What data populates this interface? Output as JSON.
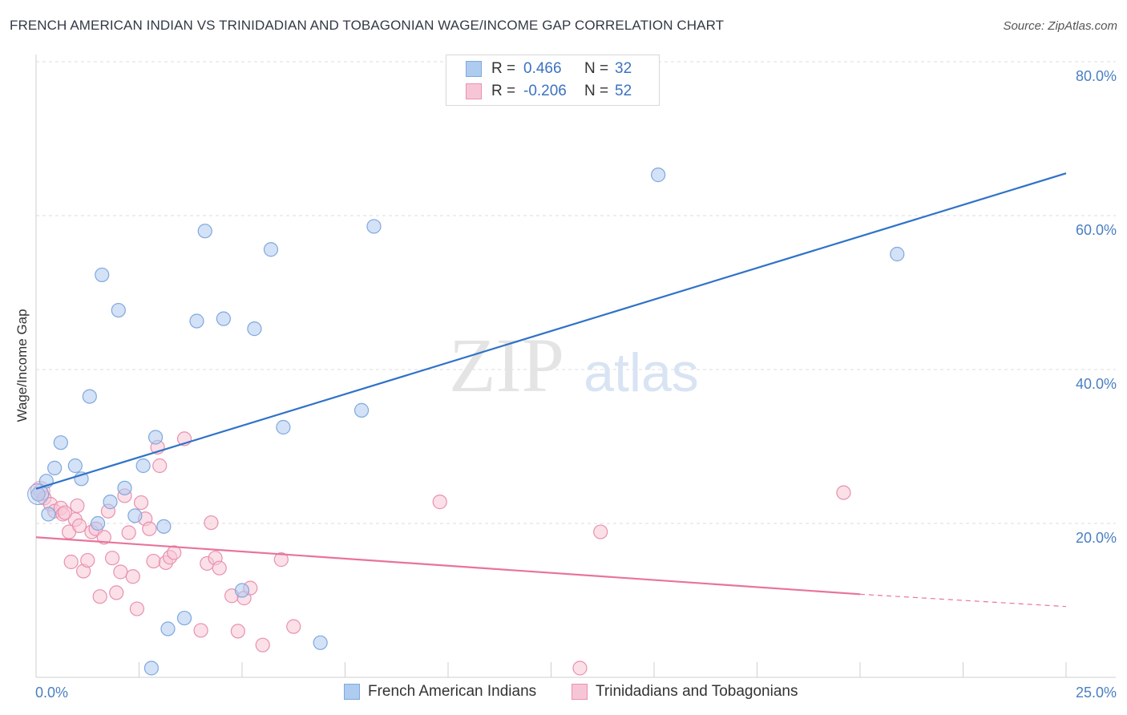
{
  "title": "FRENCH AMERICAN INDIAN VS TRINIDADIAN AND TOBAGONIAN WAGE/INCOME GAP CORRELATION CHART",
  "source": "Source: ZipAtlas.com",
  "watermark": {
    "zip": "ZIP",
    "atlas": "atlas"
  },
  "legend": {
    "rows": [
      {
        "r_label": "R =",
        "r_value": "0.466",
        "n_label": "N =",
        "n_value": "32",
        "color": "#aecbf0",
        "border": "#7fa8de"
      },
      {
        "r_label": "R =",
        "r_value": "-0.206",
        "n_label": "N =",
        "n_value": "52",
        "color": "#f7c6d6",
        "border": "#e891ae"
      }
    ]
  },
  "bottom_legend": [
    {
      "label": "French American Indians",
      "color": "#aecbf0",
      "border": "#7fa8de"
    },
    {
      "label": "Trinidadians and Tobagonians",
      "color": "#f7c6d6",
      "border": "#e891ae"
    }
  ],
  "chart_data": {
    "type": "scatter",
    "title": "FRENCH AMERICAN INDIAN VS TRINIDADIAN AND TOBAGONIAN WAGE/INCOME GAP CORRELATION CHART",
    "xlabel": "",
    "ylabel": "Wage/Income Gap",
    "xlim": [
      0,
      25
    ],
    "ylim": [
      0,
      80
    ],
    "x_tick_labels": [
      "0.0%",
      "25.0%"
    ],
    "y_ticks": [
      20,
      40,
      60,
      80
    ],
    "y_tick_labels": [
      "20.0%",
      "40.0%",
      "60.0%",
      "80.0%"
    ],
    "grid": true,
    "series": [
      {
        "name": "French American Indians",
        "color": "#aecbf0",
        "stroke": "#7fa8de",
        "line_color": "#2f72c8",
        "trend": {
          "x0": 0,
          "y0": 24.5,
          "x1": 25,
          "y1": 65.5
        },
        "points": [
          [
            0.05,
            23.8
          ],
          [
            0.25,
            25.5
          ],
          [
            0.45,
            27.2
          ],
          [
            0.6,
            30.5
          ],
          [
            0.95,
            27.5
          ],
          [
            1.1,
            25.8
          ],
          [
            1.3,
            36.5
          ],
          [
            1.5,
            20.0
          ],
          [
            1.6,
            52.3
          ],
          [
            1.8,
            22.8
          ],
          [
            2.0,
            47.7
          ],
          [
            2.15,
            24.6
          ],
          [
            2.4,
            21.0
          ],
          [
            2.6,
            27.5
          ],
          [
            2.9,
            31.2
          ],
          [
            3.1,
            19.6
          ],
          [
            3.2,
            6.3
          ],
          [
            3.6,
            7.7
          ],
          [
            3.9,
            46.3
          ],
          [
            4.1,
            58.0
          ],
          [
            4.55,
            46.6
          ],
          [
            5.0,
            11.3
          ],
          [
            5.3,
            45.3
          ],
          [
            5.7,
            55.6
          ],
          [
            6.0,
            32.5
          ],
          [
            6.9,
            4.5
          ],
          [
            7.9,
            34.7
          ],
          [
            8.2,
            58.6
          ],
          [
            15.1,
            65.3
          ],
          [
            20.9,
            55.0
          ],
          [
            0.3,
            21.2
          ],
          [
            2.8,
            1.2
          ]
        ]
      },
      {
        "name": "Trinidadians and Tobagonians",
        "color": "#f7c6d6",
        "stroke": "#e891ae",
        "line_color": "#e8749b",
        "trend": {
          "x0": 0,
          "y0": 18.2,
          "x1": 20,
          "y1": 10.8
        },
        "trend_dashed": {
          "x0": 20,
          "y0": 10.8,
          "x1": 25,
          "y1": 9.2
        },
        "points": [
          [
            0.1,
            24.2
          ],
          [
            0.2,
            23.3
          ],
          [
            0.35,
            22.5
          ],
          [
            0.45,
            21.6
          ],
          [
            0.6,
            22.0
          ],
          [
            0.65,
            21.2
          ],
          [
            0.8,
            18.9
          ],
          [
            0.85,
            15.0
          ],
          [
            0.95,
            20.5
          ],
          [
            1.05,
            19.7
          ],
          [
            1.15,
            13.8
          ],
          [
            1.25,
            15.2
          ],
          [
            1.35,
            18.9
          ],
          [
            1.45,
            19.3
          ],
          [
            1.55,
            10.5
          ],
          [
            1.65,
            18.2
          ],
          [
            1.75,
            21.6
          ],
          [
            1.85,
            15.5
          ],
          [
            1.95,
            11.0
          ],
          [
            2.05,
            13.7
          ],
          [
            2.15,
            23.6
          ],
          [
            2.25,
            18.8
          ],
          [
            2.35,
            13.1
          ],
          [
            2.45,
            8.9
          ],
          [
            2.55,
            22.7
          ],
          [
            2.65,
            20.6
          ],
          [
            2.75,
            19.3
          ],
          [
            2.85,
            15.1
          ],
          [
            2.95,
            29.9
          ],
          [
            3.0,
            27.5
          ],
          [
            3.15,
            14.9
          ],
          [
            3.25,
            15.6
          ],
          [
            3.35,
            16.2
          ],
          [
            3.6,
            31.0
          ],
          [
            4.0,
            6.1
          ],
          [
            4.15,
            14.8
          ],
          [
            4.25,
            20.1
          ],
          [
            4.35,
            15.5
          ],
          [
            4.45,
            14.2
          ],
          [
            4.75,
            10.6
          ],
          [
            4.9,
            6.0
          ],
          [
            5.05,
            10.3
          ],
          [
            5.2,
            11.6
          ],
          [
            5.5,
            4.2
          ],
          [
            5.95,
            15.3
          ],
          [
            6.25,
            6.6
          ],
          [
            9.8,
            22.8
          ],
          [
            13.2,
            1.2
          ],
          [
            13.7,
            18.9
          ],
          [
            19.6,
            24.0
          ],
          [
            1.0,
            22.3
          ],
          [
            0.7,
            21.4
          ]
        ]
      }
    ]
  }
}
